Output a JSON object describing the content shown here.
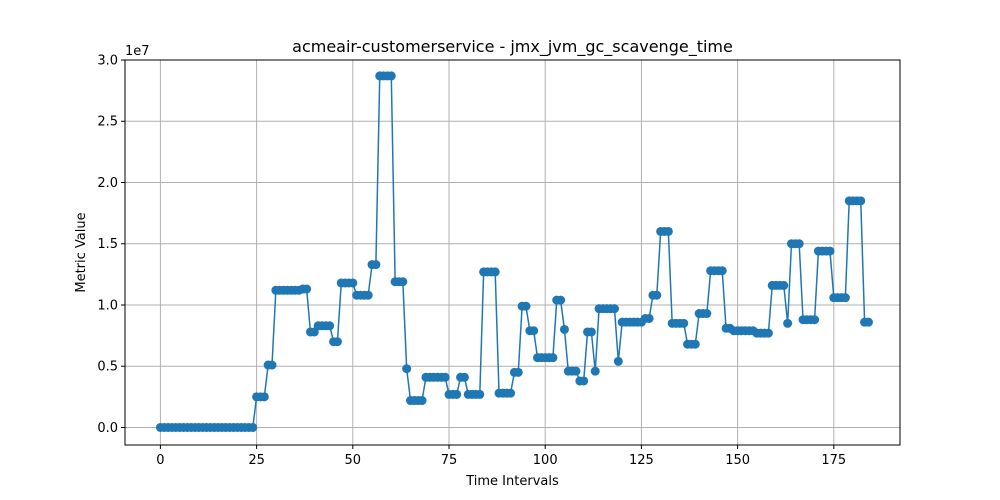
{
  "chart_data": {
    "type": "line",
    "title": "acmeair-customerservice - jmx_jvm_gc_scavenge_time",
    "xlabel": "Time Intervals",
    "ylabel": "Metric Value",
    "y_offset_label": "1e7",
    "y_scale": 10000000,
    "xlim": [
      -9.2,
      192.2
    ],
    "ylim": [
      -1430000,
      30000000
    ],
    "x_ticks": [
      0,
      25,
      50,
      75,
      100,
      125,
      150,
      175
    ],
    "y_ticks": [
      0,
      5000000,
      10000000,
      15000000,
      20000000,
      25000000,
      30000000
    ],
    "y_tick_labels": [
      "0.0",
      "0.5",
      "1.0",
      "1.5",
      "2.0",
      "2.5",
      "3.0"
    ],
    "grid": true,
    "line_color": "#1f77b4",
    "marker": "circle",
    "series": [
      {
        "values": [
          0,
          0,
          0,
          0,
          0,
          0,
          0,
          0,
          0,
          0,
          0,
          0,
          0,
          0,
          0,
          0,
          0,
          0,
          0,
          0,
          0,
          0,
          0,
          0,
          0,
          2500000,
          2500000,
          2500000,
          5100000,
          5100000,
          11200000,
          11200000,
          11200000,
          11200000,
          11200000,
          11200000,
          11200000,
          11300000,
          11300000,
          7800000,
          7800000,
          8300000,
          8300000,
          8300000,
          8300000,
          7000000,
          7000000,
          11800000,
          11800000,
          11800000,
          11800000,
          10800000,
          10800000,
          10800000,
          10800000,
          13300000,
          13300000,
          28700000,
          28700000,
          28700000,
          28700000,
          11900000,
          11900000,
          11900000,
          4800000,
          2200000,
          2200000,
          2200000,
          2200000,
          4100000,
          4100000,
          4100000,
          4100000,
          4100000,
          4100000,
          2700000,
          2700000,
          2700000,
          4100000,
          4100000,
          2700000,
          2700000,
          2700000,
          2700000,
          12700000,
          12700000,
          12700000,
          12700000,
          2800000,
          2800000,
          2800000,
          2800000,
          4500000,
          4500000,
          9900000,
          9900000,
          7900000,
          7900000,
          5700000,
          5700000,
          5700000,
          5700000,
          5700000,
          10400000,
          10400000,
          8000000,
          4600000,
          4600000,
          4600000,
          3800000,
          3800000,
          7800000,
          7800000,
          4600000,
          9700000,
          9700000,
          9700000,
          9700000,
          9700000,
          5400000,
          8600000,
          8600000,
          8600000,
          8600000,
          8600000,
          8600000,
          8900000,
          8900000,
          10800000,
          10800000,
          16000000,
          16000000,
          16000000,
          8500000,
          8500000,
          8500000,
          8500000,
          6800000,
          6800000,
          6800000,
          9300000,
          9300000,
          9300000,
          12800000,
          12800000,
          12800000,
          12800000,
          8100000,
          8100000,
          7900000,
          7900000,
          7900000,
          7900000,
          7900000,
          7900000,
          7700000,
          7700000,
          7700000,
          7700000,
          11600000,
          11600000,
          11600000,
          11600000,
          8500000,
          15000000,
          15000000,
          15000000,
          8800000,
          8800000,
          8800000,
          8800000,
          14400000,
          14400000,
          14400000,
          14400000,
          10600000,
          10600000,
          10600000,
          10600000,
          18500000,
          18500000,
          18500000,
          18500000,
          8600000,
          8600000
        ]
      }
    ]
  }
}
